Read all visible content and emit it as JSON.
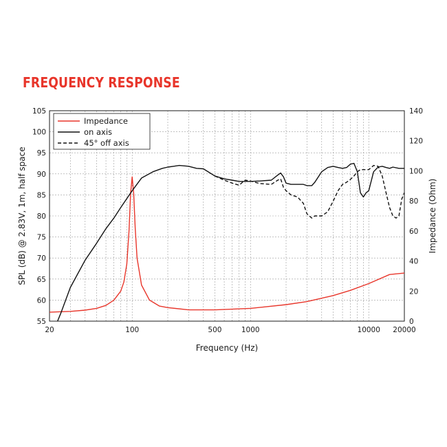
{
  "page": {
    "heading": "FREQUENCY RESPONSE"
  },
  "chart_data": {
    "type": "line",
    "title": "FREQUENCY RESPONSE",
    "xlabel": "Frequency (Hz)",
    "ylabel": "SPL (dB) @ 2.83V, 1m, half space",
    "y2label": "Impedance (Ohm)",
    "x_scale": "log",
    "xlim": [
      20,
      20000
    ],
    "ylim": [
      55,
      105
    ],
    "y2lim": [
      0,
      140
    ],
    "x_ticks": [
      20,
      100,
      500,
      1000,
      10000,
      20000
    ],
    "x_tick_labels": [
      "20",
      "100",
      "500",
      "1000",
      "10000",
      "20000"
    ],
    "y_ticks": [
      55,
      60,
      65,
      70,
      75,
      80,
      85,
      90,
      95,
      100,
      105
    ],
    "y2_ticks": [
      0,
      20,
      40,
      60,
      80,
      100,
      120,
      140
    ],
    "grid": true,
    "legend_position": "top-left",
    "series": [
      {
        "name": "Impedance",
        "axis": "right",
        "color": "#e8352a",
        "style": "solid",
        "x": [
          20,
          30,
          40,
          50,
          60,
          70,
          80,
          85,
          90,
          94,
          97,
          100,
          103,
          106,
          110,
          120,
          140,
          170,
          200,
          300,
          500,
          1000,
          2000,
          3000,
          5000,
          7000,
          10000,
          15000,
          20000
        ],
        "y": [
          6,
          6.5,
          7.3,
          8.5,
          10.5,
          14,
          20,
          26,
          38,
          60,
          85,
          96,
          85,
          62,
          42,
          24,
          14,
          10,
          9,
          7.5,
          7.5,
          8.5,
          11,
          13,
          17,
          20.5,
          25,
          31,
          32
        ]
      },
      {
        "name": "on axis",
        "axis": "left",
        "color": "#111111",
        "style": "solid",
        "x": [
          20,
          23,
          25,
          30,
          40,
          50,
          60,
          70,
          80,
          100,
          120,
          150,
          180,
          200,
          250,
          300,
          350,
          400,
          450,
          500,
          600,
          700,
          800,
          1000,
          1200,
          1500,
          1700,
          1800,
          1900,
          2000,
          2200,
          2500,
          2800,
          3000,
          3300,
          3500,
          4000,
          4500,
          5000,
          5500,
          6000,
          6500,
          7000,
          7500,
          8000,
          8500,
          9000,
          9500,
          10000,
          11000,
          12000,
          13000,
          14000,
          15000,
          16000,
          18000,
          20000
        ],
        "y": [
          44.5,
          54.5,
          57,
          63,
          69.5,
          73.5,
          77,
          79.5,
          82,
          86,
          89,
          90.5,
          91.3,
          91.6,
          92,
          91.8,
          91.3,
          91.2,
          90.3,
          89.5,
          88.8,
          88.5,
          88.2,
          88.2,
          88.3,
          88.5,
          89.7,
          90.2,
          89.3,
          87.8,
          87.5,
          87.5,
          87.5,
          87.2,
          87.2,
          88,
          90.5,
          91.5,
          91.8,
          91.5,
          91.3,
          91.5,
          92.3,
          92.5,
          90.5,
          85.5,
          84.5,
          85.5,
          86,
          90.5,
          91.6,
          91.8,
          91.5,
          91.3,
          91.6,
          91.3,
          91.3
        ]
      },
      {
        "name": "45° off axis",
        "axis": "left",
        "color": "#111111",
        "style": "dashed",
        "x": [
          500,
          600,
          700,
          800,
          900,
          1000,
          1200,
          1500,
          1700,
          1800,
          1900,
          2000,
          2200,
          2500,
          2800,
          3000,
          3300,
          3500,
          4000,
          4500,
          5000,
          5500,
          6000,
          6500,
          7000,
          7500,
          8000,
          8500,
          9000,
          10000,
          11000,
          12000,
          13000,
          14000,
          15000,
          16000,
          17000,
          18000,
          19000,
          20000
        ],
        "y": [
          89.5,
          88.5,
          87.8,
          87.3,
          88.5,
          88.3,
          87.7,
          87.5,
          88.5,
          88.8,
          86.8,
          86,
          85,
          84.5,
          83,
          80.5,
          79.5,
          80,
          80,
          81,
          83.5,
          86,
          87.5,
          88,
          88.7,
          89.5,
          90.5,
          91,
          91,
          91,
          92,
          91.8,
          89.5,
          85.5,
          82,
          80,
          79.5,
          80,
          84,
          85.5
        ]
      }
    ]
  }
}
